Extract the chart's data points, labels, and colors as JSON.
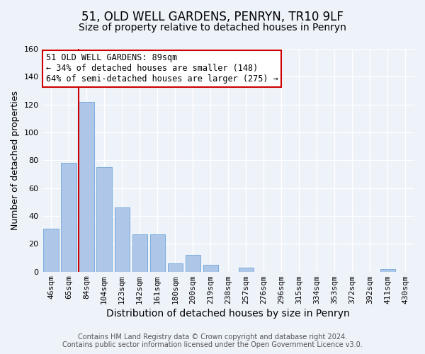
{
  "title": "51, OLD WELL GARDENS, PENRYN, TR10 9LF",
  "subtitle": "Size of property relative to detached houses in Penryn",
  "xlabel": "Distribution of detached houses by size in Penryn",
  "ylabel": "Number of detached properties",
  "bar_labels": [
    "46sqm",
    "65sqm",
    "84sqm",
    "104sqm",
    "123sqm",
    "142sqm",
    "161sqm",
    "180sqm",
    "200sqm",
    "219sqm",
    "238sqm",
    "257sqm",
    "276sqm",
    "296sqm",
    "315sqm",
    "334sqm",
    "353sqm",
    "372sqm",
    "392sqm",
    "411sqm",
    "430sqm"
  ],
  "bar_values": [
    31,
    78,
    122,
    75,
    46,
    27,
    27,
    6,
    12,
    5,
    0,
    3,
    0,
    0,
    0,
    0,
    0,
    0,
    0,
    2,
    0
  ],
  "bar_color": "#aec6e8",
  "bar_edge_color": "#5b9bd5",
  "vline_bar_index": 2,
  "vline_color": "#cc0000",
  "annotation_text": "51 OLD WELL GARDENS: 89sqm\n← 34% of detached houses are smaller (148)\n64% of semi-detached houses are larger (275) →",
  "annotation_box_color": "white",
  "annotation_box_edge": "#cc0000",
  "ylim": [
    0,
    160
  ],
  "yticks": [
    0,
    20,
    40,
    60,
    80,
    100,
    120,
    140,
    160
  ],
  "footer_line1": "Contains HM Land Registry data © Crown copyright and database right 2024.",
  "footer_line2": "Contains public sector information licensed under the Open Government Licence v3.0.",
  "bg_color": "#eef2f9",
  "plot_bg_color": "#eef2f9",
  "grid_color": "white",
  "title_fontsize": 12,
  "subtitle_fontsize": 10,
  "xlabel_fontsize": 10,
  "ylabel_fontsize": 9,
  "tick_fontsize": 8,
  "footer_fontsize": 7
}
